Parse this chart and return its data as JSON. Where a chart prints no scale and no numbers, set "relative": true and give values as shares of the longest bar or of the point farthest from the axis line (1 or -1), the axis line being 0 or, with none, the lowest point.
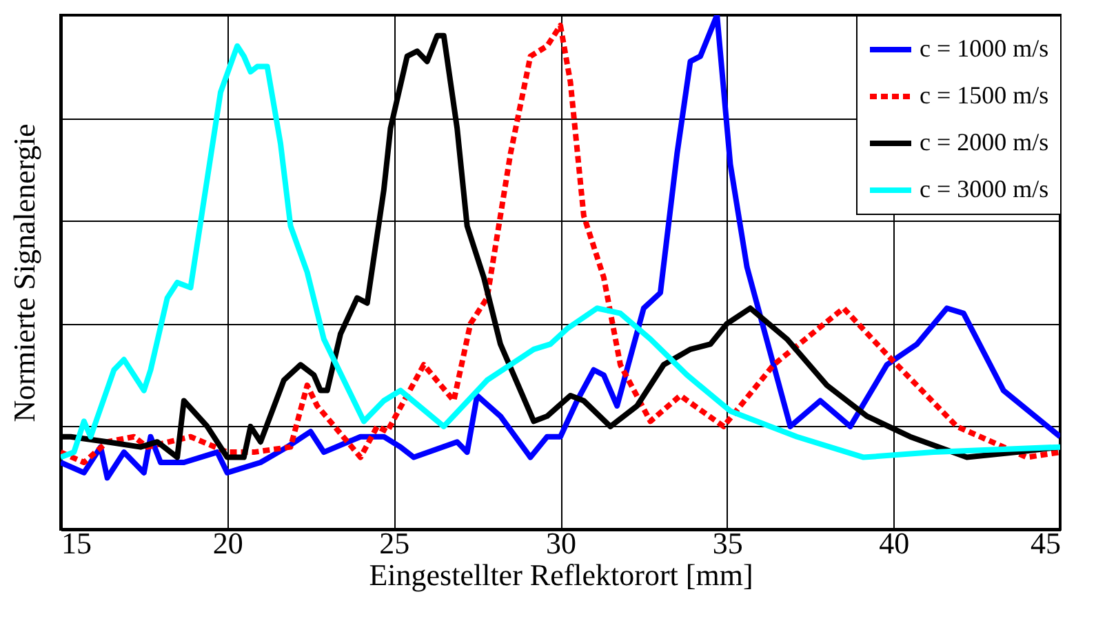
{
  "chart_data": {
    "type": "line",
    "xlabel": "Eingestellter Reflektorort [mm]",
    "ylabel": "Normierte Signalenergie",
    "relative": true,
    "xlim": [
      15,
      45
    ],
    "xticks": [
      15,
      20,
      25,
      30,
      35,
      40,
      45
    ],
    "grid": true,
    "legend": "top right",
    "tick_labels": "x",
    "marker": "none",
    "series": [
      {
        "name": "c = 1000 m/s",
        "color": "#0000ff",
        "line_style": "solid",
        "x": [
          15,
          15.7,
          16.2,
          16.4,
          16.9,
          17.5,
          17.7,
          18.0,
          18.7,
          19.7,
          20.0,
          21.0,
          21.8,
          22.5,
          22.9,
          24.0,
          24.7,
          25.2,
          25.6,
          26.9,
          27.2,
          27.5,
          28.2,
          29.1,
          29.6,
          30.0,
          30.5,
          31.0,
          31.3,
          31.7,
          32.5,
          33.0,
          33.5,
          33.9,
          34.2,
          34.7,
          35.1,
          35.6,
          36.9,
          37.8,
          38.7,
          39.8,
          40.7,
          41.6,
          42.1,
          43.3,
          45
        ],
        "values": [
          0.13,
          0.11,
          0.16,
          0.1,
          0.15,
          0.11,
          0.18,
          0.13,
          0.13,
          0.15,
          0.11,
          0.13,
          0.16,
          0.19,
          0.15,
          0.18,
          0.18,
          0.16,
          0.14,
          0.17,
          0.15,
          0.26,
          0.22,
          0.14,
          0.18,
          0.18,
          0.25,
          0.31,
          0.3,
          0.24,
          0.43,
          0.46,
          0.73,
          0.91,
          0.92,
          1.0,
          0.71,
          0.51,
          0.2,
          0.25,
          0.2,
          0.32,
          0.36,
          0.43,
          0.42,
          0.27,
          0.18
        ]
      },
      {
        "name": "c = 1500 m/s",
        "color": "#ff0000",
        "line_style": "dashed",
        "x": [
          15,
          15.7,
          16.4,
          17.2,
          17.6,
          18.9,
          20.0,
          20.8,
          21.9,
          22.4,
          22.7,
          24.0,
          24.5,
          24.8,
          25.9,
          26.8,
          27.3,
          27.8,
          28.5,
          29.1,
          29.6,
          30.0,
          30.3,
          30.7,
          31.3,
          31.8,
          32.7,
          33.6,
          34.9,
          36.4,
          38.5,
          39.8,
          41.9,
          44.0,
          45
        ],
        "values": [
          0.15,
          0.13,
          0.17,
          0.18,
          0.16,
          0.18,
          0.15,
          0.15,
          0.16,
          0.28,
          0.24,
          0.14,
          0.2,
          0.19,
          0.32,
          0.25,
          0.4,
          0.45,
          0.73,
          0.92,
          0.94,
          0.98,
          0.87,
          0.61,
          0.49,
          0.32,
          0.21,
          0.26,
          0.2,
          0.32,
          0.43,
          0.34,
          0.2,
          0.14,
          0.15
        ]
      },
      {
        "name": "c = 2000 m/s",
        "color": "#000000",
        "line_style": "solid",
        "x": [
          15,
          15.3,
          16.4,
          17.4,
          17.9,
          18.5,
          18.7,
          19.4,
          20.0,
          20.5,
          20.7,
          21.0,
          21.7,
          22.2,
          22.6,
          22.8,
          23.0,
          23.4,
          23.9,
          24.2,
          24.7,
          24.9,
          25.4,
          25.7,
          26.0,
          26.3,
          26.5,
          26.9,
          27.2,
          27.7,
          28.2,
          29.2,
          29.6,
          30.3,
          30.7,
          31.5,
          32.3,
          33.1,
          33.9,
          34.5,
          35.0,
          35.7,
          36.8,
          38.0,
          39.2,
          40.5,
          42.2,
          43.7,
          45
        ],
        "values": [
          0.18,
          0.18,
          0.17,
          0.16,
          0.17,
          0.14,
          0.25,
          0.2,
          0.14,
          0.14,
          0.2,
          0.17,
          0.29,
          0.32,
          0.3,
          0.27,
          0.27,
          0.38,
          0.45,
          0.44,
          0.66,
          0.78,
          0.92,
          0.93,
          0.91,
          0.96,
          0.96,
          0.78,
          0.59,
          0.49,
          0.36,
          0.21,
          0.22,
          0.26,
          0.25,
          0.2,
          0.24,
          0.32,
          0.35,
          0.36,
          0.4,
          0.43,
          0.37,
          0.28,
          0.22,
          0.18,
          0.14,
          0.15,
          0.16
        ]
      },
      {
        "name": "c = 3000 m/s",
        "color": "#00ffff",
        "line_style": "solid",
        "x": [
          15,
          15.4,
          15.7,
          15.9,
          16.6,
          16.9,
          17.5,
          17.7,
          18.2,
          18.5,
          18.9,
          19.3,
          19.8,
          20.3,
          20.5,
          20.7,
          20.9,
          21.2,
          21.6,
          21.9,
          22.4,
          22.9,
          24.1,
          24.7,
          25.2,
          26.5,
          27.8,
          29.2,
          29.7,
          30.2,
          31.1,
          31.8,
          32.7,
          33.8,
          35.1,
          37.1,
          39.1,
          41.2,
          45
        ],
        "values": [
          0.14,
          0.15,
          0.21,
          0.18,
          0.31,
          0.33,
          0.27,
          0.31,
          0.45,
          0.48,
          0.47,
          0.64,
          0.85,
          0.94,
          0.92,
          0.89,
          0.9,
          0.9,
          0.75,
          0.59,
          0.5,
          0.37,
          0.21,
          0.25,
          0.27,
          0.2,
          0.29,
          0.35,
          0.36,
          0.39,
          0.43,
          0.42,
          0.37,
          0.3,
          0.23,
          0.18,
          0.14,
          0.15,
          0.16
        ]
      }
    ]
  }
}
